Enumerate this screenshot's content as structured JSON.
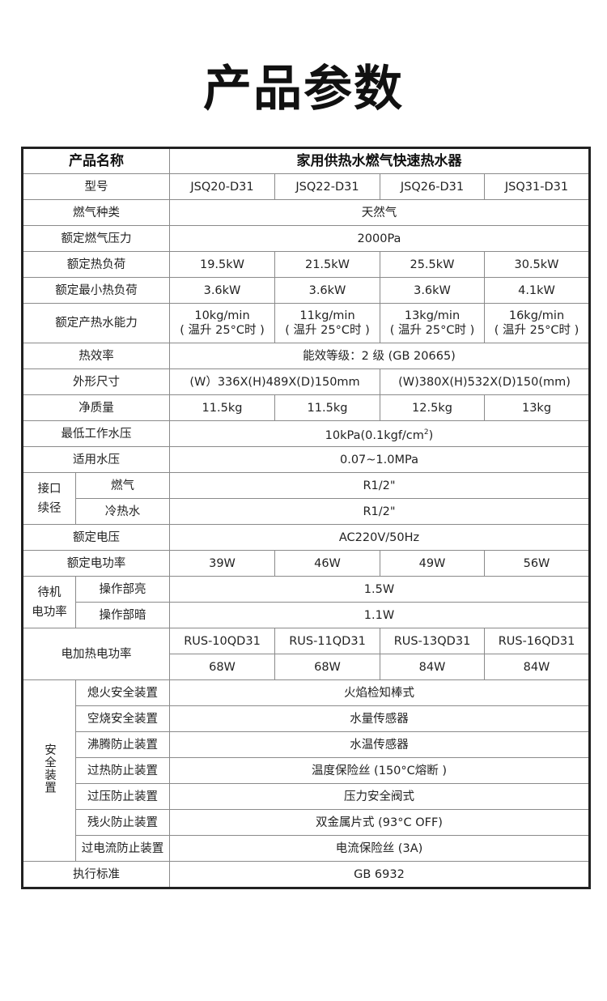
{
  "title": "产品参数",
  "table": {
    "header": {
      "label": "产品名称",
      "value": "家用供热水燃气快速热水器"
    },
    "model": {
      "label": "型号",
      "values": [
        "JSQ20-D31",
        "JSQ22-D31",
        "JSQ26-D31",
        "JSQ31-D31"
      ]
    },
    "gas_type": {
      "label": "燃气种类",
      "value": "天然气"
    },
    "gas_pressure": {
      "label": "额定燃气压力",
      "value": "2000Pa"
    },
    "heat_load": {
      "label": "额定热负荷",
      "values": [
        "19.5kW",
        "21.5kW",
        "25.5kW",
        "30.5kW"
      ]
    },
    "min_heat_load": {
      "label": "额定最小热负荷",
      "values": [
        "3.6kW",
        "3.6kW",
        "3.6kW",
        "4.1kW"
      ]
    },
    "hot_water": {
      "label": "额定产热水能力",
      "values": [
        "10kg/min",
        "11kg/min",
        "13kg/min",
        "16kg/min"
      ],
      "note": "( 温升 25°C时 )"
    },
    "efficiency": {
      "label": "热效率",
      "value": "能效等级：2 级 (GB 20665)"
    },
    "dimensions": {
      "label": "外形尺寸",
      "values": [
        "(W）336X(H)489X(D)150mm",
        "(W)380X(H)532X(D)150(mm)"
      ]
    },
    "weight": {
      "label": "净质量",
      "values": [
        "11.5kg",
        "11.5kg",
        "12.5kg",
        "13kg"
      ]
    },
    "min_water_pressure": {
      "label": "最低工作水压",
      "value": "10kPa(0.1kgf/cm",
      "sup": "2",
      "suffix": ")"
    },
    "water_pressure": {
      "label": "适用水压",
      "value": "0.07~1.0MPa"
    },
    "connection": {
      "label_1": "接口",
      "label_2": "续径",
      "gas": {
        "label": "燃气",
        "value": "R1/2\""
      },
      "water": {
        "label": "冷热水",
        "value": "R1/2\""
      }
    },
    "voltage": {
      "label": "额定电压",
      "value": "AC220V/50Hz"
    },
    "power": {
      "label": "额定电功率",
      "values": [
        "39W",
        "46W",
        "49W",
        "56W"
      ]
    },
    "standby": {
      "label_1": "待机",
      "label_2": "电功率",
      "on": {
        "label": "操作部亮",
        "value": "1.5W"
      },
      "off": {
        "label": "操作部暗",
        "value": "1.1W"
      }
    },
    "heater": {
      "label": "电加热电功率",
      "models": [
        "RUS-10QD31",
        "RUS-11QD31",
        "RUS-13QD31",
        "RUS-16QD31"
      ],
      "values": [
        "68W",
        "68W",
        "84W",
        "84W"
      ]
    },
    "safety": {
      "label": "安全装置",
      "items": [
        {
          "label": "熄火安全装置",
          "value": "火焰检知棒式"
        },
        {
          "label": "空烧安全装置",
          "value": "水量传感器"
        },
        {
          "label": "沸腾防止装置",
          "value": "水温传感器"
        },
        {
          "label": "过热防止装置",
          "value": "温度保险丝 (150°C熔断 )"
        },
        {
          "label": "过压防止装置",
          "value": "压力安全阀式"
        },
        {
          "label": "残火防止装置",
          "value": "双金属片式 (93°C OFF)"
        },
        {
          "label": "过电流防止装置",
          "value": "电流保险丝 (3A)"
        }
      ]
    },
    "standard": {
      "label": "执行标准",
      "value": "GB 6932"
    }
  }
}
